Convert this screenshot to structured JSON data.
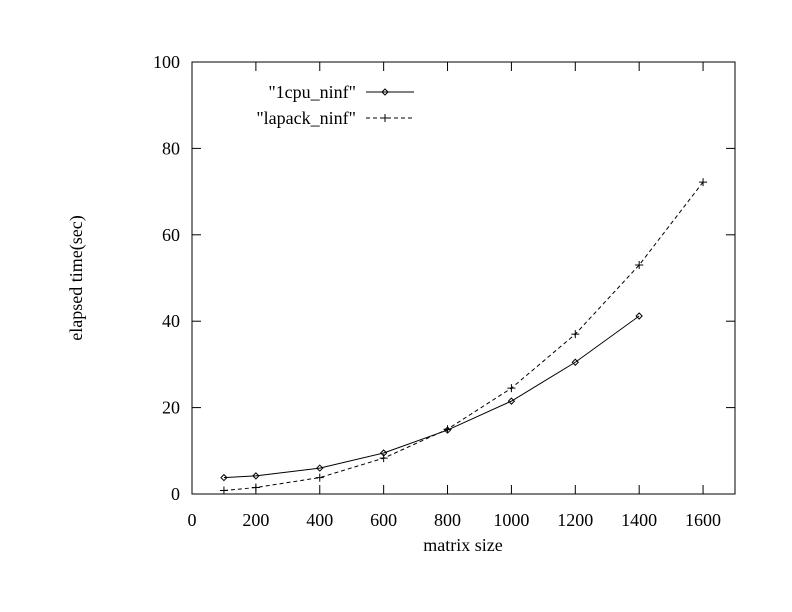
{
  "chart_data": {
    "type": "line",
    "xlabel": "matrix size",
    "ylabel": "elapsed time(sec)",
    "xlim": [
      0,
      1700
    ],
    "ylim": [
      0,
      100
    ],
    "xticks": [
      "0",
      "200",
      "400",
      "600",
      "800",
      "1000",
      "1200",
      "1400",
      "1600"
    ],
    "yticks": [
      "0",
      "20",
      "40",
      "60",
      "80",
      "100"
    ],
    "legend_position": "top-left",
    "grid": false,
    "series": [
      {
        "name": "\"1cpu_ninf\"",
        "marker": "diamond",
        "line": "solid",
        "points": [
          [
            100,
            3.8
          ],
          [
            200,
            4.2
          ],
          [
            400,
            6.0
          ],
          [
            600,
            9.5
          ],
          [
            800,
            14.8
          ],
          [
            1000,
            21.5
          ],
          [
            1200,
            30.5
          ],
          [
            1400,
            41.2
          ]
        ]
      },
      {
        "name": "\"lapack_ninf\"",
        "marker": "plus",
        "line": "dashed",
        "points": [
          [
            100,
            0.8
          ],
          [
            200,
            1.5
          ],
          [
            400,
            3.8
          ],
          [
            600,
            8.3
          ],
          [
            800,
            15.0
          ],
          [
            1000,
            24.5
          ],
          [
            1200,
            37.0
          ],
          [
            1400,
            53.0
          ],
          [
            1600,
            72.2
          ]
        ]
      }
    ]
  }
}
